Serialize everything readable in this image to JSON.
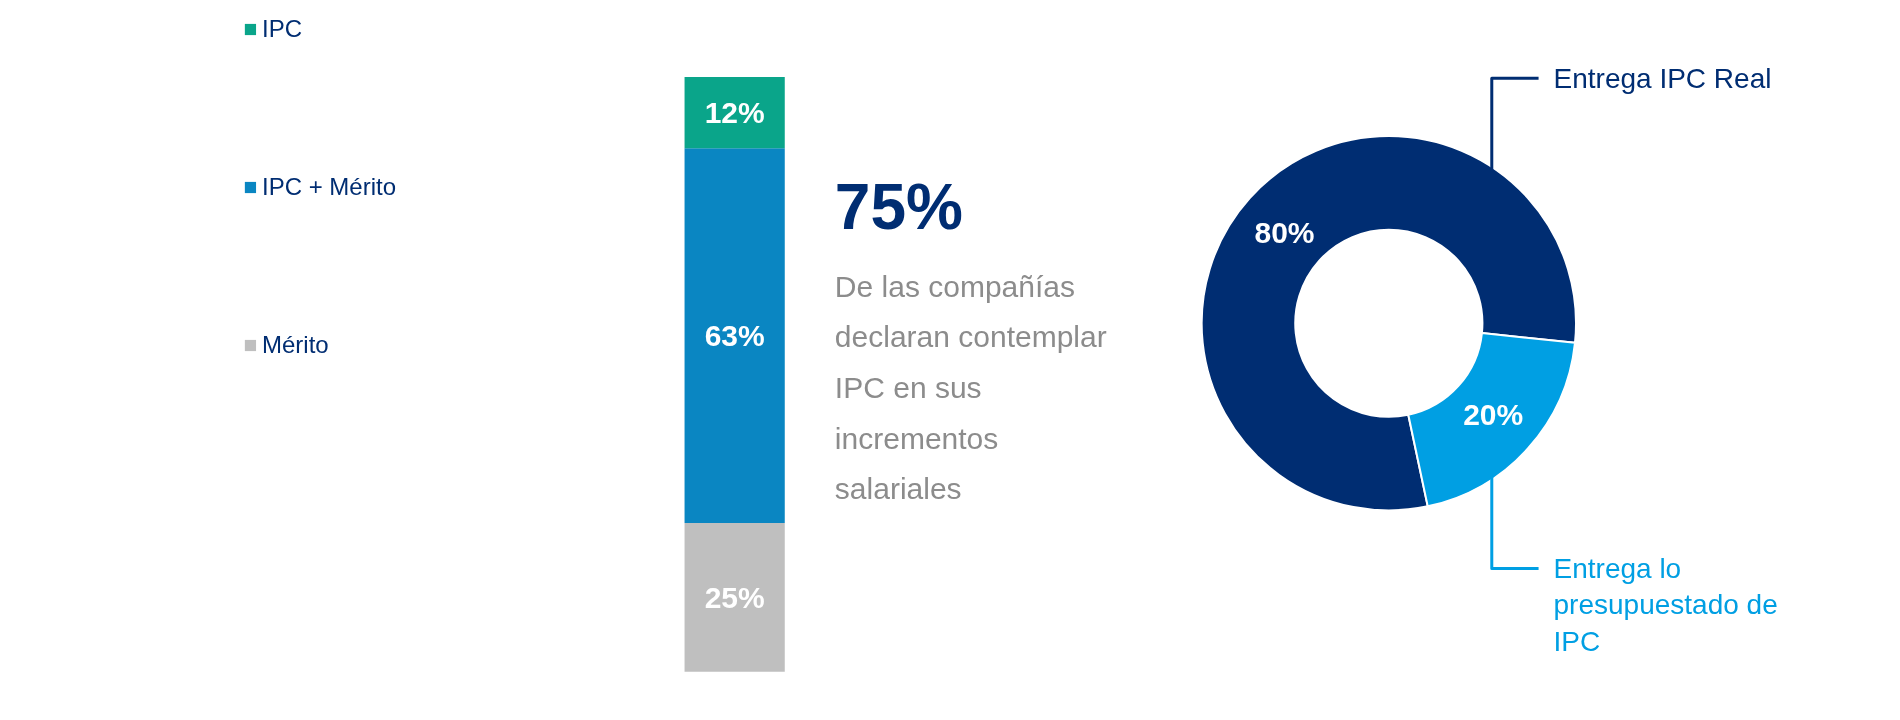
{
  "chart_data": [
    {
      "type": "bar",
      "stacked": true,
      "categories": [
        null
      ],
      "legend": "left",
      "series": [
        {
          "name": "Mérito",
          "color": "#bfbfbf",
          "values": [
            25
          ],
          "value_labels": [
            "25%"
          ]
        },
        {
          "name": "IPC + Mérito",
          "color": "#0a86c2",
          "values": [
            63
          ],
          "value_labels": [
            "63%"
          ]
        },
        {
          "name": "IPC",
          "color": "#0aa58a",
          "values": [
            12
          ],
          "value_labels": [
            "12%"
          ]
        }
      ],
      "annotations": [
        "75%",
        "De las compañías declaran contemplar IPC en sus incrementos salariales"
      ]
    },
    {
      "type": "donut",
      "categories": [
        "Entrega IPC Real",
        "Entrega lo presupuestado de IPC"
      ],
      "values": [
        80,
        20
      ],
      "colors": [
        "#002d72",
        "#009fe3"
      ],
      "value_labels": [
        "80%",
        "20%"
      ]
    }
  ]
}
